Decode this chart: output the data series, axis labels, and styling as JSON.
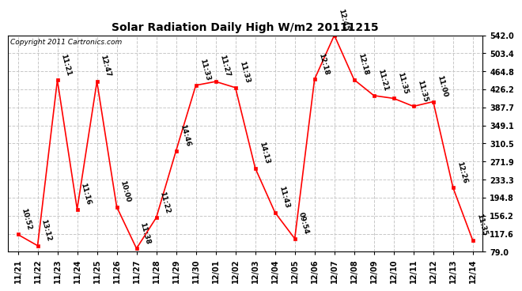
{
  "title": "Solar Radiation Daily High W/m2 20111215",
  "copyright": "Copyright 2011 Cartronics.com",
  "x_labels": [
    "11/21",
    "11/22",
    "11/23",
    "11/24",
    "11/25",
    "11/26",
    "11/27",
    "11/28",
    "11/29",
    "11/30",
    "12/01",
    "12/02",
    "12/03",
    "12/04",
    "12/05",
    "12/06",
    "12/07",
    "12/08",
    "12/09",
    "12/10",
    "12/11",
    "12/12",
    "12/13",
    "12/14"
  ],
  "y_values": [
    116,
    92,
    446,
    170,
    443,
    175,
    86,
    152,
    295,
    435,
    443,
    430,
    258,
    163,
    107,
    448,
    542,
    447,
    413,
    407,
    390,
    400,
    216,
    103
  ],
  "time_labels": [
    "10:52",
    "13:12",
    "11:21",
    "11:16",
    "12:47",
    "10:00",
    "11:38",
    "11:22",
    "14:46",
    "11:33",
    "11:27",
    "11:33",
    "14:13",
    "11:43",
    "09:54",
    "12:18",
    "12:45",
    "12:18",
    "11:21",
    "11:35",
    "11:35",
    "11:00",
    "12:26",
    "11:35"
  ],
  "line_color": "#ff0000",
  "marker_color": "#ff0000",
  "bg_color": "#ffffff",
  "grid_color": "#c8c8c8",
  "ylim_min": 79.0,
  "ylim_max": 542.0,
  "yticks": [
    79.0,
    117.6,
    156.2,
    194.8,
    233.3,
    271.9,
    310.5,
    349.1,
    387.7,
    426.2,
    464.8,
    503.4,
    542.0
  ],
  "ytick_labels": [
    "79.0",
    "117.6",
    "156.2",
    "194.8",
    "233.3",
    "271.9",
    "310.5",
    "349.1",
    "387.7",
    "426.2",
    "464.8",
    "503.4",
    "542.0"
  ]
}
